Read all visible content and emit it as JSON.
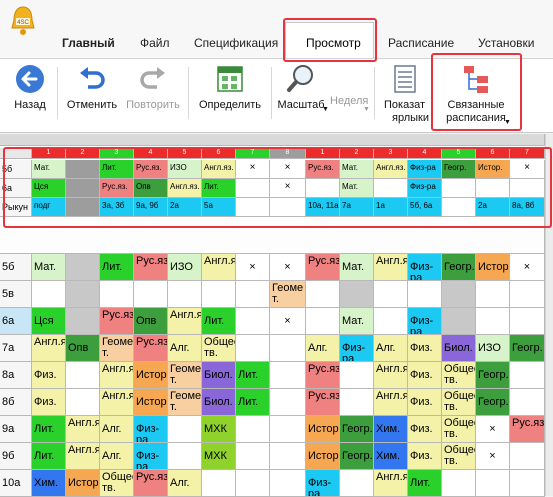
{
  "menu": {
    "tabs": [
      "Главный",
      "Файл",
      "Спецификация",
      "Просмотр",
      "Расписание",
      "Установки"
    ],
    "active_tab": "Просмотр"
  },
  "ribbon": {
    "back": "Назад",
    "undo": "Отменить",
    "redo": "Повторить",
    "define": "Определить",
    "scale": "Масштаб",
    "week": "Неделя",
    "show1": "Показат",
    "show2": "ярлыки",
    "related1": "Связанные",
    "related2": "расписания"
  },
  "colors": {
    "red": "#ec2b2b",
    "green": "#2bd12b",
    "pink": "#f08181",
    "lime": "#72ec4a",
    "cyan": "#1bc9f2",
    "yellow": "#f4f1a8",
    "lightgreen": "#d6f3c9",
    "orange": "#f6a752",
    "purple": "#8a67d8",
    "blue": "#3377f0",
    "gray": "#9d9d9d",
    "olive": "#8fd22c",
    "dkgreen": "#3d9e3d",
    "lavender": "#d8b6f2",
    "peach": "#f8cfa0"
  },
  "top_table": {
    "headers": [
      "1",
      "2",
      "3",
      "4",
      "5",
      "6",
      "7",
      "8",
      "1",
      "2",
      "3",
      "4",
      "5",
      "6",
      "7"
    ],
    "rows": [
      {
        "label": "5б",
        "cells": [
          "Мат.",
          "",
          "Лит.",
          "Рус.яз.",
          "ИЗО",
          "Англ.яз.",
          "×",
          "×",
          "Рус.яз.",
          "Мат.",
          "Англ.яз.",
          "Физ-ра",
          "Геогр.",
          "Истор.",
          "×"
        ]
      },
      {
        "label": "6а",
        "cells": [
          "Цся",
          "",
          "Рус.яз.",
          "Опв",
          "Англ.яз.",
          "Лит.",
          "",
          "×",
          "",
          "Мат.",
          "",
          "Физ-ра",
          "",
          "",
          ""
        ]
      },
      {
        "label": "Рыкун",
        "cells": [
          "подг",
          "",
          "3а, 3б",
          "9а, 9б",
          "2а",
          "5а",
          "",
          "",
          "10а, 11а",
          "7а",
          "1а",
          "5б, 6а",
          "",
          "2а",
          "8а, 8б"
        ]
      }
    ]
  },
  "main_table": {
    "rows": [
      {
        "label": "5б",
        "cells": [
          "Мат.",
          "",
          "Лит.",
          "Рус.яз.",
          "ИЗО",
          "Англ.яз.",
          "×",
          "×",
          "Рус.яз.",
          "Мат.",
          "Англ.яз.",
          "Физ-ра",
          "Геогр.",
          "Истор.",
          "×"
        ]
      },
      {
        "label": "5в",
        "cells": [
          "",
          "",
          "",
          "",
          "",
          "",
          "",
          "Геоме т.",
          "",
          "",
          "",
          "",
          "",
          "",
          ""
        ]
      },
      {
        "label": "6а",
        "cells": [
          "Цся",
          "",
          "Рус.яз.",
          "Опв",
          "Англ.яз.",
          "Лит.",
          "",
          "×",
          "",
          "Мат.",
          "",
          "Физ-ра",
          "",
          "",
          ""
        ]
      },
      {
        "label": "7а",
        "cells": [
          "Англ.яз.",
          "Опв",
          "Геоме т.",
          "Рус.яз.",
          "Алг.",
          "Общес тв.",
          "",
          "",
          "Алг.",
          "Физ-ра",
          "Алг.",
          "Физ.",
          "Биол.",
          "ИЗО",
          "Геогр."
        ]
      },
      {
        "label": "8а",
        "cells": [
          "Физ.",
          "",
          "Англ.яз.",
          "Истор.",
          "Геоме т.",
          "Биол.",
          "Лит.",
          "",
          "Рус.яз.",
          "",
          "Англ.яз.",
          "Физ.",
          "Общес тв.",
          "Геогр.",
          ""
        ]
      },
      {
        "label": "8б",
        "cells": [
          "Физ.",
          "",
          "Англ.яз.",
          "Истор.",
          "Геоме т.",
          "Биол.",
          "Лит.",
          "",
          "Рус.яз.",
          "",
          "Англ.яз.",
          "Физ.",
          "Общес тв.",
          "Геогр.",
          ""
        ]
      },
      {
        "label": "9а",
        "cells": [
          "Лит.",
          "Англ.яз.",
          "Алг.",
          "Физ-ра",
          "",
          "МХК",
          "",
          "",
          "Истор.",
          "Геогр.",
          "Хим.",
          "Физ.",
          "Общес тв.",
          "×",
          "Рус.яз."
        ]
      },
      {
        "label": "9б",
        "cells": [
          "Лит.",
          "Англ.яз.",
          "Алг.",
          "Физ-ра",
          "",
          "МХК",
          "",
          "",
          "Истор.",
          "Геогр.",
          "Хим.",
          "Физ.",
          "Общес тв.",
          "×",
          ""
        ]
      },
      {
        "label": "10а",
        "cells": [
          "Хим.",
          "Истор.",
          "Общес тв.",
          "Рус.яз.",
          "Алг.",
          "",
          "",
          "",
          "Физ-ра",
          "",
          "Англ.яз.",
          "Лит.",
          "",
          "",
          ""
        ]
      }
    ]
  }
}
